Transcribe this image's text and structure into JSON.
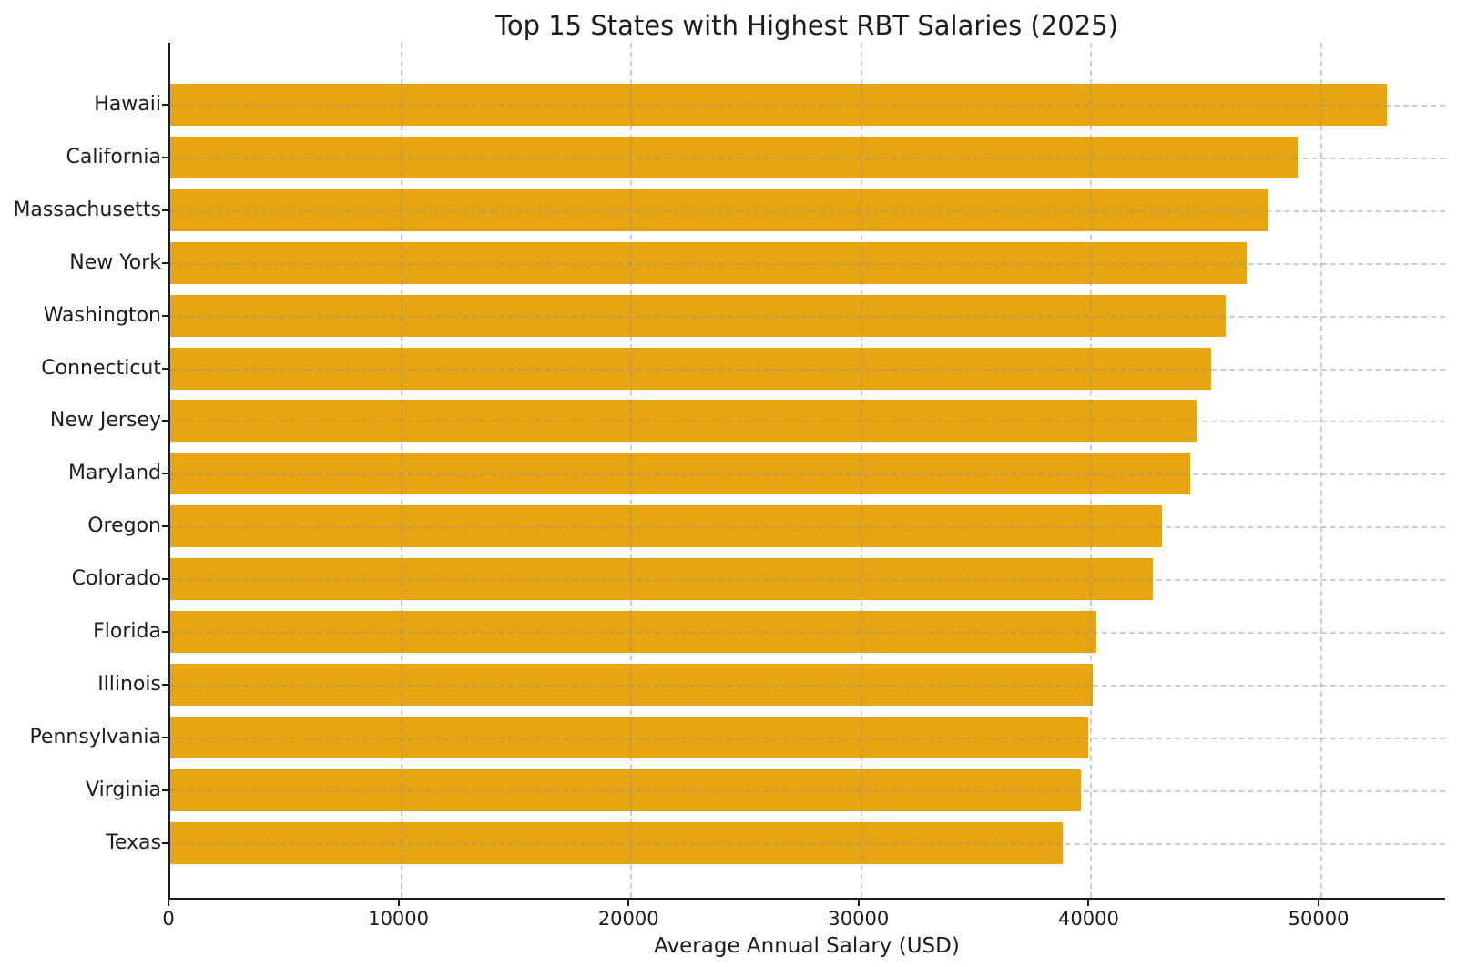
{
  "chart_data": {
    "type": "bar",
    "orientation": "horizontal",
    "title": "Top 15 States with Highest RBT Salaries (2025)",
    "xlabel": "Average Annual Salary (USD)",
    "ylabel": "",
    "categories": [
      "Hawaii",
      "California",
      "Massachusetts",
      "New York",
      "Washington",
      "Connecticut",
      "New Jersey",
      "Maryland",
      "Oregon",
      "Colorado",
      "Florida",
      "Illinois",
      "Pennsylvania",
      "Virginia",
      "Texas"
    ],
    "values": [
      52900,
      49000,
      47700,
      46800,
      45900,
      45250,
      44600,
      44350,
      43100,
      42700,
      40250,
      40100,
      39900,
      39600,
      38800
    ],
    "xlim": [
      0,
      55500
    ],
    "x_ticks": [
      0,
      10000,
      20000,
      30000,
      40000,
      50000
    ],
    "x_tick_labels": [
      "0",
      "10000",
      "20000",
      "30000",
      "40000",
      "50000"
    ],
    "grid": true,
    "grid_style": "dashed",
    "legend": "none",
    "bar_color": "#E7A611",
    "grid_color": "#C9C9C9",
    "spine_color": "#1A1A1A",
    "text_color": "#1C1C1C"
  }
}
